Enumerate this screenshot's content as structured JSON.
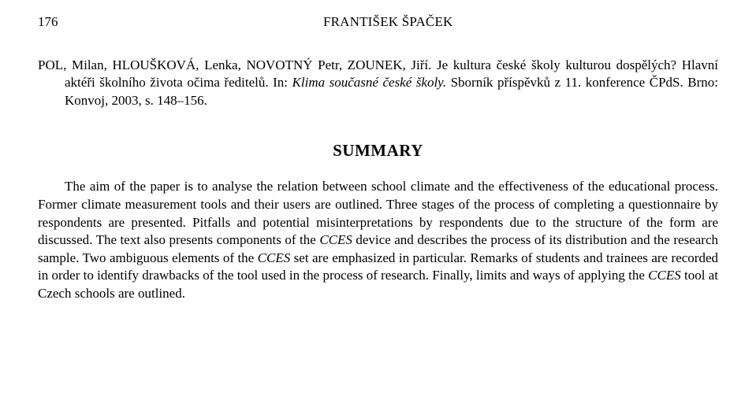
{
  "page_number": "176",
  "running_head": "FRANTIŠEK ŠPAČEK",
  "bibliography": {
    "line1_prefix": "POL, Milan, HLOUŠKOVÁ, Lenka, NOVOTNÝ Petr, ZOUNEK, Jiří. Je kultura české školy kulturou dospělých? Hlavní aktéři školního života očima ředitelů. In: ",
    "line1_italic": "Klima současné české školy. ",
    "line2": "Sborník příspěvků z 11. konference ČPdS. Brno: Konvoj, 2003, s. 148–156."
  },
  "summary_title": "SUMMARY",
  "summary": {
    "p1a": "The aim of the paper is to analyse the relation between school climate and the effectiveness of the educational process. Former climate measurement tools and their users are outlined. Three stages of the process of completing a questionnaire by respondents are presented. Pitfalls and potential misinterpretations by respondents due to the structure of the form are discussed. The text also presents components of the ",
    "cces1": "CCES",
    "p1b": " device and describes the process of its distribution and the research sample. Two ambiguous elements of the ",
    "cces2": "CCES",
    "p1c": " set are emphasized in particular. Remarks of students and trainees are recorded in order to identify drawbacks of the tool used in the process of research. Finally, limits and ways of applying the ",
    "cces3": "CCES",
    "p1d": " tool at Czech schools are outlined."
  }
}
